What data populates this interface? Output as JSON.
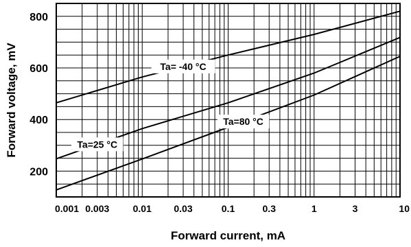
{
  "chart_data": {
    "type": "line",
    "xlabel": "Forward current, mA",
    "ylabel": "Forward voltage, mV",
    "xscale": "log",
    "xlim": [
      0.001,
      10
    ],
    "ylim": [
      100,
      850
    ],
    "grid": true,
    "x_tick_labels": [
      "0.001",
      "0.003",
      "0.01",
      "0.03",
      "0.1",
      "0.3",
      "1",
      "3",
      "10"
    ],
    "y_tick_labels": [
      "200",
      "400",
      "600",
      "800"
    ],
    "series": [
      {
        "name": "Ta= -40 °C",
        "x": [
          0.001,
          0.01,
          0.1,
          1,
          10
        ],
        "y": [
          465,
          565,
          650,
          730,
          820
        ]
      },
      {
        "name": "Ta=25 °C",
        "x": [
          0.001,
          0.01,
          0.1,
          1,
          10
        ],
        "y": [
          248,
          365,
          465,
          580,
          718
        ]
      },
      {
        "name": "Ta=80 °C",
        "x": [
          0.001,
          0.01,
          0.1,
          1,
          10
        ],
        "y": [
          127,
          247,
          370,
          495,
          645
        ]
      }
    ]
  }
}
